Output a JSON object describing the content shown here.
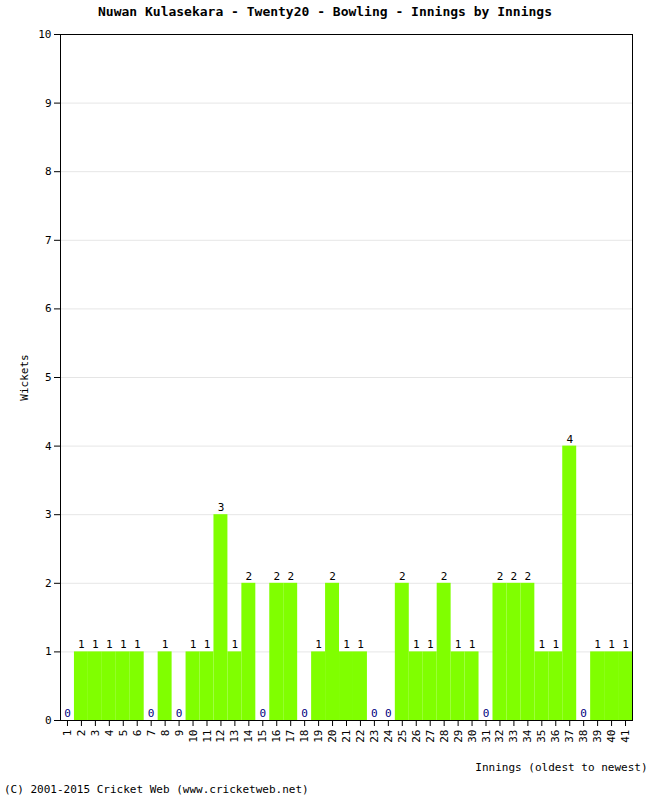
{
  "chart_data": {
    "type": "bar",
    "title": "Nuwan Kulasekara - Twenty20 - Bowling - Innings by Innings",
    "x_label": "Innings (oldest to newest)",
    "y_label": "Wickets",
    "footer": "(C) 2001-2015 Cricket Web (www.cricketweb.net)",
    "categories": [
      "1",
      "2",
      "3",
      "4",
      "5",
      "6",
      "7",
      "8",
      "9",
      "10",
      "11",
      "12",
      "13",
      "14",
      "15",
      "16",
      "17",
      "18",
      "19",
      "20",
      "21",
      "22",
      "23",
      "24",
      "25",
      "26",
      "27",
      "28",
      "29",
      "30",
      "31",
      "32",
      "33",
      "34",
      "35",
      "36",
      "37",
      "38",
      "39",
      "40",
      "41"
    ],
    "values": [
      0,
      1,
      1,
      1,
      1,
      1,
      0,
      1,
      0,
      1,
      1,
      3,
      1,
      2,
      0,
      2,
      2,
      0,
      1,
      2,
      1,
      1,
      0,
      0,
      2,
      1,
      1,
      2,
      1,
      1,
      0,
      2,
      2,
      2,
      1,
      1,
      4,
      0,
      1,
      1,
      1
    ],
    "color": "#80ff00",
    "ylim": [
      0,
      10
    ],
    "yticks": [
      0,
      1,
      2,
      3,
      4,
      5,
      6,
      7,
      8,
      9,
      10
    ],
    "grid": true,
    "data_labels": true
  }
}
